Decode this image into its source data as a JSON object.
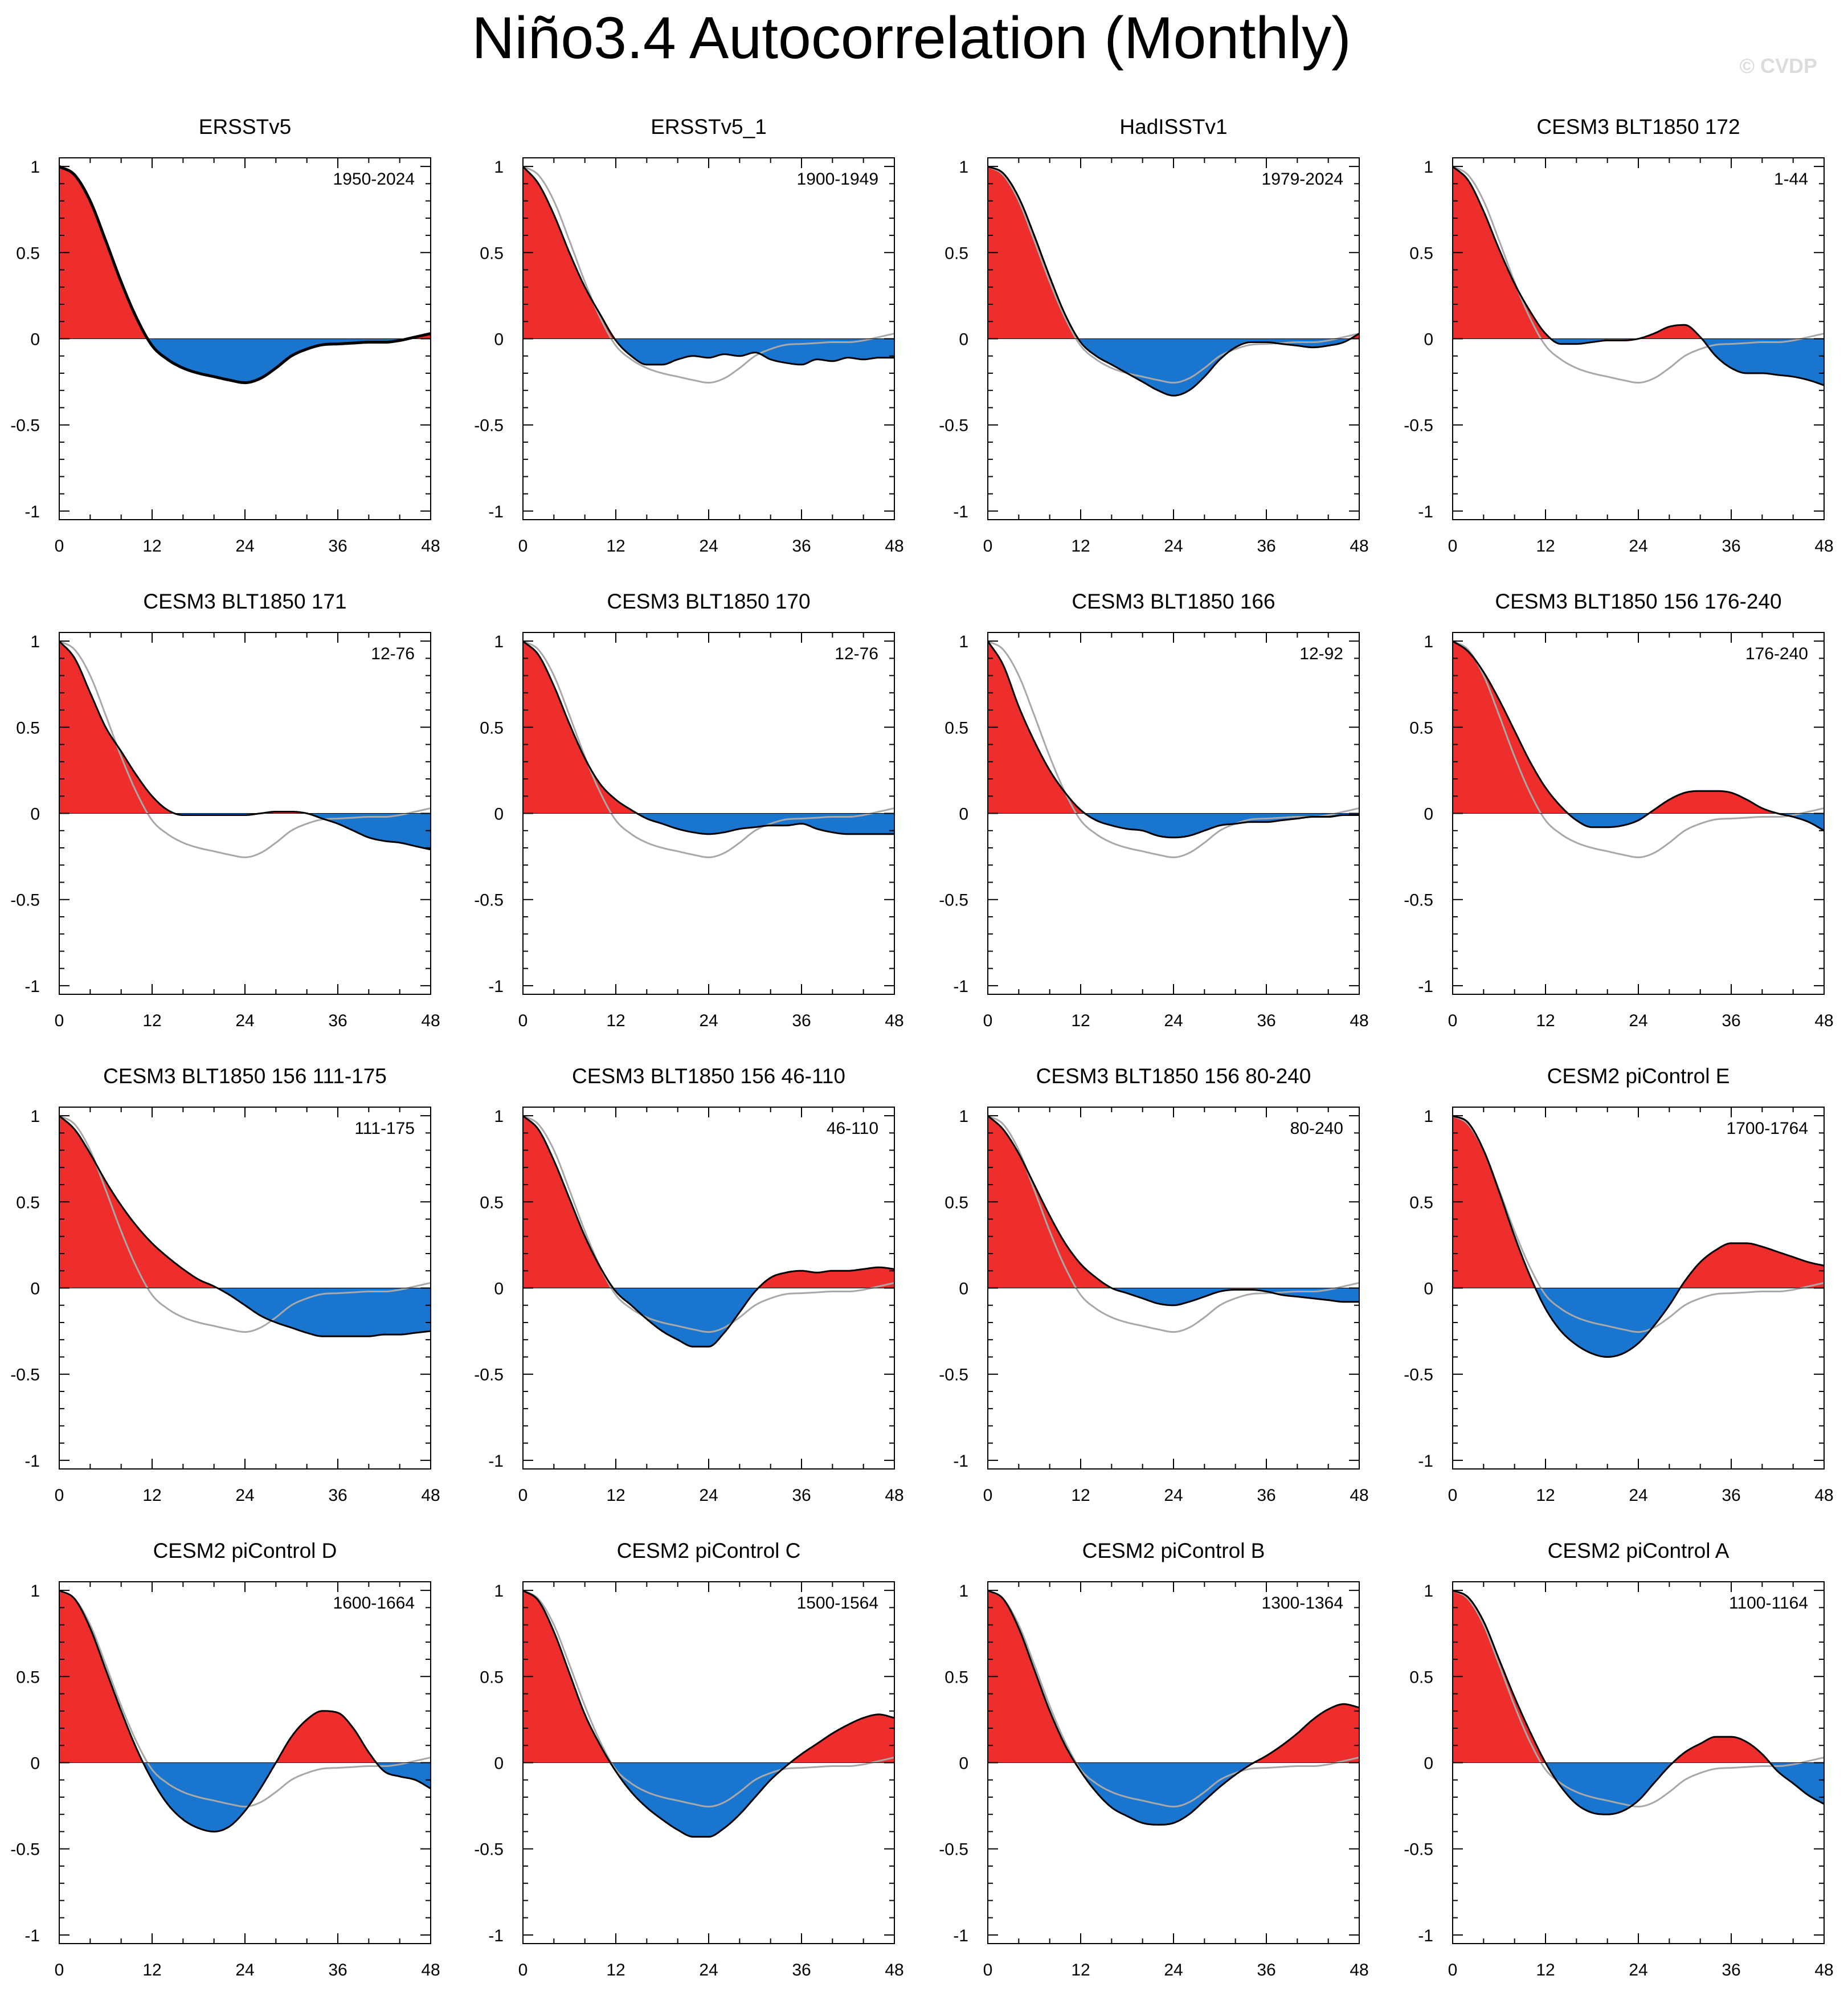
{
  "title": "Niño3.4 Autocorrelation (Monthly)",
  "watermark": "© CVDP",
  "colors": {
    "positive": "#ee2d2d",
    "negative": "#1a75cf",
    "reference": "#a8a8a8",
    "line": "#000000"
  },
  "chart_data": [
    {
      "type": "area",
      "title": "ERSSTv5",
      "period": "1950-2024",
      "x_ticks": [
        0,
        12,
        24,
        36,
        48
      ],
      "y_ticks": [
        1,
        0.5,
        0,
        -0.5,
        -1
      ],
      "xlim": [
        0,
        48
      ],
      "ylim": [
        -1.05,
        1.05
      ],
      "lags": [
        0,
        2,
        4,
        6,
        8,
        10,
        12,
        14,
        16,
        18,
        20,
        22,
        24,
        26,
        28,
        30,
        32,
        34,
        36,
        38,
        40,
        42,
        44,
        46,
        48
      ],
      "values": [
        1.0,
        0.95,
        0.8,
        0.57,
        0.33,
        0.12,
        -0.04,
        -0.12,
        -0.17,
        -0.2,
        -0.22,
        -0.24,
        -0.255,
        -0.23,
        -0.17,
        -0.1,
        -0.06,
        -0.035,
        -0.03,
        -0.025,
        -0.02,
        -0.02,
        -0.01,
        0.01,
        0.03
      ]
    },
    {
      "type": "area",
      "title": "ERSSTv5_1",
      "period": "1900-1949",
      "x_ticks": [
        0,
        12,
        24,
        36,
        48
      ],
      "y_ticks": [
        1,
        0.5,
        0,
        -0.5,
        -1
      ],
      "xlim": [
        0,
        48
      ],
      "ylim": [
        -1.05,
        1.05
      ],
      "lags": [
        0,
        2,
        4,
        6,
        8,
        10,
        12,
        14,
        16,
        18,
        20,
        22,
        24,
        26,
        28,
        30,
        32,
        34,
        36,
        38,
        40,
        42,
        44,
        46,
        48
      ],
      "values": [
        1.0,
        0.9,
        0.72,
        0.5,
        0.3,
        0.14,
        -0.01,
        -0.1,
        -0.15,
        -0.15,
        -0.12,
        -0.1,
        -0.11,
        -0.09,
        -0.1,
        -0.08,
        -0.12,
        -0.14,
        -0.15,
        -0.12,
        -0.13,
        -0.11,
        -0.12,
        -0.11,
        -0.11
      ]
    },
    {
      "type": "area",
      "title": "HadISSTv1",
      "period": "1979-2024",
      "x_ticks": [
        0,
        12,
        24,
        36,
        48
      ],
      "y_ticks": [
        1,
        0.5,
        0,
        -0.5,
        -1
      ],
      "xlim": [
        0,
        48
      ],
      "ylim": [
        -1.05,
        1.05
      ],
      "lags": [
        0,
        2,
        4,
        6,
        8,
        10,
        12,
        14,
        16,
        18,
        20,
        22,
        24,
        26,
        28,
        30,
        32,
        34,
        36,
        38,
        40,
        42,
        44,
        46,
        48
      ],
      "values": [
        1.0,
        0.96,
        0.82,
        0.6,
        0.36,
        0.14,
        -0.02,
        -0.1,
        -0.15,
        -0.2,
        -0.25,
        -0.3,
        -0.33,
        -0.3,
        -0.22,
        -0.12,
        -0.05,
        -0.02,
        -0.02,
        -0.03,
        -0.04,
        -0.05,
        -0.04,
        -0.02,
        0.03
      ]
    },
    {
      "type": "area",
      "title": "CESM3 BLT1850 172",
      "period": "1-44",
      "x_ticks": [
        0,
        12,
        24,
        36,
        48
      ],
      "y_ticks": [
        1,
        0.5,
        0,
        -0.5,
        -1
      ],
      "xlim": [
        0,
        48
      ],
      "ylim": [
        -1.05,
        1.05
      ],
      "lags": [
        0,
        2,
        4,
        6,
        8,
        10,
        12,
        14,
        16,
        18,
        20,
        22,
        24,
        26,
        28,
        30,
        32,
        34,
        36,
        38,
        40,
        42,
        44,
        46,
        48
      ],
      "values": [
        1.0,
        0.92,
        0.74,
        0.52,
        0.32,
        0.16,
        0.03,
        -0.03,
        -0.03,
        -0.02,
        -0.01,
        -0.01,
        0.0,
        0.03,
        0.07,
        0.08,
        0.01,
        -0.1,
        -0.17,
        -0.2,
        -0.2,
        -0.21,
        -0.22,
        -0.24,
        -0.27
      ]
    },
    {
      "type": "area",
      "title": "CESM3 BLT1850 171",
      "period": "12-76",
      "x_ticks": [
        0,
        12,
        24,
        36,
        48
      ],
      "y_ticks": [
        1,
        0.5,
        0,
        -0.5,
        -1
      ],
      "xlim": [
        0,
        48
      ],
      "ylim": [
        -1.05,
        1.05
      ],
      "lags": [
        0,
        2,
        4,
        6,
        8,
        10,
        12,
        14,
        16,
        18,
        20,
        22,
        24,
        26,
        28,
        30,
        32,
        34,
        36,
        38,
        40,
        42,
        44,
        46,
        48
      ],
      "values": [
        1.0,
        0.9,
        0.7,
        0.5,
        0.36,
        0.22,
        0.1,
        0.02,
        -0.01,
        -0.01,
        -0.01,
        -0.01,
        -0.01,
        0.0,
        0.01,
        0.01,
        0.0,
        -0.03,
        -0.06,
        -0.1,
        -0.14,
        -0.16,
        -0.17,
        -0.19,
        -0.21
      ]
    },
    {
      "type": "area",
      "title": "CESM3 BLT1850 170",
      "period": "12-76",
      "x_ticks": [
        0,
        12,
        24,
        36,
        48
      ],
      "y_ticks": [
        1,
        0.5,
        0,
        -0.5,
        -1
      ],
      "xlim": [
        0,
        48
      ],
      "ylim": [
        -1.05,
        1.05
      ],
      "lags": [
        0,
        2,
        4,
        6,
        8,
        10,
        12,
        14,
        16,
        18,
        20,
        22,
        24,
        26,
        28,
        30,
        32,
        34,
        36,
        38,
        40,
        42,
        44,
        46,
        48
      ],
      "values": [
        1.0,
        0.92,
        0.74,
        0.52,
        0.32,
        0.17,
        0.08,
        0.02,
        -0.03,
        -0.06,
        -0.09,
        -0.11,
        -0.12,
        -0.11,
        -0.09,
        -0.08,
        -0.07,
        -0.07,
        -0.06,
        -0.09,
        -0.11,
        -0.12,
        -0.12,
        -0.12,
        -0.12
      ]
    },
    {
      "type": "area",
      "title": "CESM3 BLT1850 166",
      "period": "12-92",
      "x_ticks": [
        0,
        12,
        24,
        36,
        48
      ],
      "y_ticks": [
        1,
        0.5,
        0,
        -0.5,
        -1
      ],
      "xlim": [
        0,
        48
      ],
      "ylim": [
        -1.05,
        1.05
      ],
      "lags": [
        0,
        2,
        4,
        6,
        8,
        10,
        12,
        14,
        16,
        18,
        20,
        22,
        24,
        26,
        28,
        30,
        32,
        34,
        36,
        38,
        40,
        42,
        44,
        46,
        48
      ],
      "values": [
        1.0,
        0.86,
        0.62,
        0.42,
        0.25,
        0.12,
        0.02,
        -0.04,
        -0.07,
        -0.09,
        -0.1,
        -0.13,
        -0.14,
        -0.13,
        -0.1,
        -0.07,
        -0.06,
        -0.05,
        -0.05,
        -0.04,
        -0.03,
        -0.02,
        -0.02,
        -0.01,
        -0.01
      ]
    },
    {
      "type": "area",
      "title": "CESM3 BLT1850 156 176-240",
      "period": "176-240",
      "x_ticks": [
        0,
        12,
        24,
        36,
        48
      ],
      "y_ticks": [
        1,
        0.5,
        0,
        -0.5,
        -1
      ],
      "xlim": [
        0,
        48
      ],
      "ylim": [
        -1.05,
        1.05
      ],
      "lags": [
        0,
        2,
        4,
        6,
        8,
        10,
        12,
        14,
        16,
        18,
        20,
        22,
        24,
        26,
        28,
        30,
        32,
        34,
        36,
        38,
        40,
        42,
        44,
        46,
        48
      ],
      "values": [
        1.0,
        0.94,
        0.82,
        0.66,
        0.48,
        0.3,
        0.15,
        0.04,
        -0.04,
        -0.08,
        -0.08,
        -0.07,
        -0.04,
        0.02,
        0.08,
        0.12,
        0.13,
        0.13,
        0.12,
        0.08,
        0.03,
        0.0,
        -0.02,
        -0.05,
        -0.1
      ]
    },
    {
      "type": "area",
      "title": "CESM3 BLT1850 156 111-175",
      "period": "111-175",
      "x_ticks": [
        0,
        12,
        24,
        36,
        48
      ],
      "y_ticks": [
        1,
        0.5,
        0,
        -0.5,
        -1
      ],
      "xlim": [
        0,
        48
      ],
      "ylim": [
        -1.05,
        1.05
      ],
      "lags": [
        0,
        2,
        4,
        6,
        8,
        10,
        12,
        14,
        16,
        18,
        20,
        22,
        24,
        26,
        28,
        30,
        32,
        34,
        36,
        38,
        40,
        42,
        44,
        46,
        48
      ],
      "values": [
        1.0,
        0.92,
        0.78,
        0.62,
        0.48,
        0.36,
        0.26,
        0.18,
        0.11,
        0.05,
        0.01,
        -0.04,
        -0.1,
        -0.16,
        -0.2,
        -0.23,
        -0.26,
        -0.28,
        -0.28,
        -0.28,
        -0.28,
        -0.27,
        -0.27,
        -0.26,
        -0.25
      ]
    },
    {
      "type": "area",
      "title": "CESM3 BLT1850 156 46-110",
      "period": "46-110",
      "x_ticks": [
        0,
        12,
        24,
        36,
        48
      ],
      "y_ticks": [
        1,
        0.5,
        0,
        -0.5,
        -1
      ],
      "xlim": [
        0,
        48
      ],
      "ylim": [
        -1.05,
        1.05
      ],
      "lags": [
        0,
        2,
        4,
        6,
        8,
        10,
        12,
        14,
        16,
        18,
        20,
        22,
        24,
        26,
        28,
        30,
        32,
        34,
        36,
        38,
        40,
        42,
        44,
        46,
        48
      ],
      "values": [
        1.0,
        0.92,
        0.74,
        0.52,
        0.3,
        0.12,
        -0.02,
        -0.1,
        -0.18,
        -0.25,
        -0.3,
        -0.34,
        -0.34,
        -0.26,
        -0.14,
        -0.02,
        0.06,
        0.09,
        0.1,
        0.09,
        0.1,
        0.1,
        0.11,
        0.12,
        0.11
      ]
    },
    {
      "type": "area",
      "title": "CESM3 BLT1850 156 80-240",
      "period": "80-240",
      "x_ticks": [
        0,
        12,
        24,
        36,
        48
      ],
      "y_ticks": [
        1,
        0.5,
        0,
        -0.5,
        -1
      ],
      "xlim": [
        0,
        48
      ],
      "ylim": [
        -1.05,
        1.05
      ],
      "lags": [
        0,
        2,
        4,
        6,
        8,
        10,
        12,
        14,
        16,
        18,
        20,
        22,
        24,
        26,
        28,
        30,
        32,
        34,
        36,
        38,
        40,
        42,
        44,
        46,
        48
      ],
      "values": [
        1.0,
        0.92,
        0.78,
        0.6,
        0.42,
        0.26,
        0.14,
        0.06,
        0.0,
        -0.03,
        -0.06,
        -0.09,
        -0.1,
        -0.08,
        -0.05,
        -0.02,
        -0.01,
        -0.01,
        -0.02,
        -0.04,
        -0.05,
        -0.06,
        -0.07,
        -0.08,
        -0.08
      ]
    },
    {
      "type": "area",
      "title": "CESM2 piControl E",
      "period": "1700-1764",
      "x_ticks": [
        0,
        12,
        24,
        36,
        48
      ],
      "y_ticks": [
        1,
        0.5,
        0,
        -0.5,
        -1
      ],
      "xlim": [
        0,
        48
      ],
      "ylim": [
        -1.05,
        1.05
      ],
      "lags": [
        0,
        2,
        4,
        6,
        8,
        10,
        12,
        14,
        16,
        18,
        20,
        22,
        24,
        26,
        28,
        30,
        32,
        34,
        36,
        38,
        40,
        42,
        44,
        46,
        48
      ],
      "values": [
        1.0,
        0.96,
        0.8,
        0.56,
        0.3,
        0.07,
        -0.12,
        -0.25,
        -0.33,
        -0.38,
        -0.4,
        -0.38,
        -0.32,
        -0.22,
        -0.1,
        0.04,
        0.15,
        0.22,
        0.26,
        0.26,
        0.24,
        0.21,
        0.18,
        0.15,
        0.13
      ]
    },
    {
      "type": "area",
      "title": "CESM2 piControl D",
      "period": "1600-1664",
      "x_ticks": [
        0,
        12,
        24,
        36,
        48
      ],
      "y_ticks": [
        1,
        0.5,
        0,
        -0.5,
        -1
      ],
      "xlim": [
        0,
        48
      ],
      "ylim": [
        -1.05,
        1.05
      ],
      "lags": [
        0,
        2,
        4,
        6,
        8,
        10,
        12,
        14,
        16,
        18,
        20,
        22,
        24,
        26,
        28,
        30,
        32,
        34,
        36,
        38,
        40,
        42,
        44,
        46,
        48
      ],
      "values": [
        1.0,
        0.95,
        0.78,
        0.54,
        0.3,
        0.08,
        -0.1,
        -0.24,
        -0.33,
        -0.38,
        -0.4,
        -0.37,
        -0.28,
        -0.15,
        0.0,
        0.15,
        0.25,
        0.3,
        0.29,
        0.2,
        0.06,
        -0.05,
        -0.08,
        -0.1,
        -0.15
      ]
    },
    {
      "type": "area",
      "title": "CESM2 piControl C",
      "period": "1500-1564",
      "x_ticks": [
        0,
        12,
        24,
        36,
        48
      ],
      "y_ticks": [
        1,
        0.5,
        0,
        -0.5,
        -1
      ],
      "xlim": [
        0,
        48
      ],
      "ylim": [
        -1.05,
        1.05
      ],
      "lags": [
        0,
        2,
        4,
        6,
        8,
        10,
        12,
        14,
        16,
        18,
        20,
        22,
        24,
        26,
        28,
        30,
        32,
        34,
        36,
        38,
        40,
        42,
        44,
        46,
        48
      ],
      "values": [
        1.0,
        0.94,
        0.76,
        0.52,
        0.28,
        0.1,
        -0.05,
        -0.17,
        -0.26,
        -0.33,
        -0.39,
        -0.43,
        -0.43,
        -0.38,
        -0.3,
        -0.2,
        -0.1,
        -0.02,
        0.05,
        0.11,
        0.17,
        0.22,
        0.26,
        0.28,
        0.26
      ]
    },
    {
      "type": "area",
      "title": "CESM2 piControl B",
      "period": "1300-1364",
      "x_ticks": [
        0,
        12,
        24,
        36,
        48
      ],
      "y_ticks": [
        1,
        0.5,
        0,
        -0.5,
        -1
      ],
      "xlim": [
        0,
        48
      ],
      "ylim": [
        -1.05,
        1.05
      ],
      "lags": [
        0,
        2,
        4,
        6,
        8,
        10,
        12,
        14,
        16,
        18,
        20,
        22,
        24,
        26,
        28,
        30,
        32,
        34,
        36,
        38,
        40,
        42,
        44,
        46,
        48
      ],
      "values": [
        1.0,
        0.95,
        0.78,
        0.54,
        0.3,
        0.1,
        -0.05,
        -0.17,
        -0.26,
        -0.31,
        -0.35,
        -0.36,
        -0.35,
        -0.3,
        -0.22,
        -0.14,
        -0.07,
        -0.01,
        0.04,
        0.1,
        0.17,
        0.25,
        0.31,
        0.34,
        0.32
      ]
    },
    {
      "type": "area",
      "title": "CESM2 piControl A",
      "period": "1100-1164",
      "x_ticks": [
        0,
        12,
        24,
        36,
        48
      ],
      "y_ticks": [
        1,
        0.5,
        0,
        -0.5,
        -1
      ],
      "xlim": [
        0,
        48
      ],
      "ylim": [
        -1.05,
        1.05
      ],
      "lags": [
        0,
        2,
        4,
        6,
        8,
        10,
        12,
        14,
        16,
        18,
        20,
        22,
        24,
        26,
        28,
        30,
        32,
        34,
        36,
        38,
        40,
        42,
        44,
        46,
        48
      ],
      "values": [
        1.0,
        0.96,
        0.82,
        0.6,
        0.38,
        0.18,
        0.0,
        -0.14,
        -0.24,
        -0.29,
        -0.3,
        -0.28,
        -0.22,
        -0.12,
        -0.02,
        0.06,
        0.11,
        0.15,
        0.15,
        0.12,
        0.05,
        -0.05,
        -0.12,
        -0.19,
        -0.24
      ]
    }
  ],
  "reference_series": {
    "name": "ERSSTv5",
    "lags": [
      0,
      2,
      4,
      6,
      8,
      10,
      12,
      14,
      16,
      18,
      20,
      22,
      24,
      26,
      28,
      30,
      32,
      34,
      36,
      38,
      40,
      42,
      44,
      46,
      48
    ],
    "values": [
      1.0,
      0.95,
      0.8,
      0.57,
      0.33,
      0.12,
      -0.04,
      -0.12,
      -0.17,
      -0.2,
      -0.22,
      -0.24,
      -0.255,
      -0.23,
      -0.17,
      -0.1,
      -0.06,
      -0.035,
      -0.03,
      -0.025,
      -0.02,
      -0.02,
      -0.01,
      0.01,
      0.03
    ]
  }
}
